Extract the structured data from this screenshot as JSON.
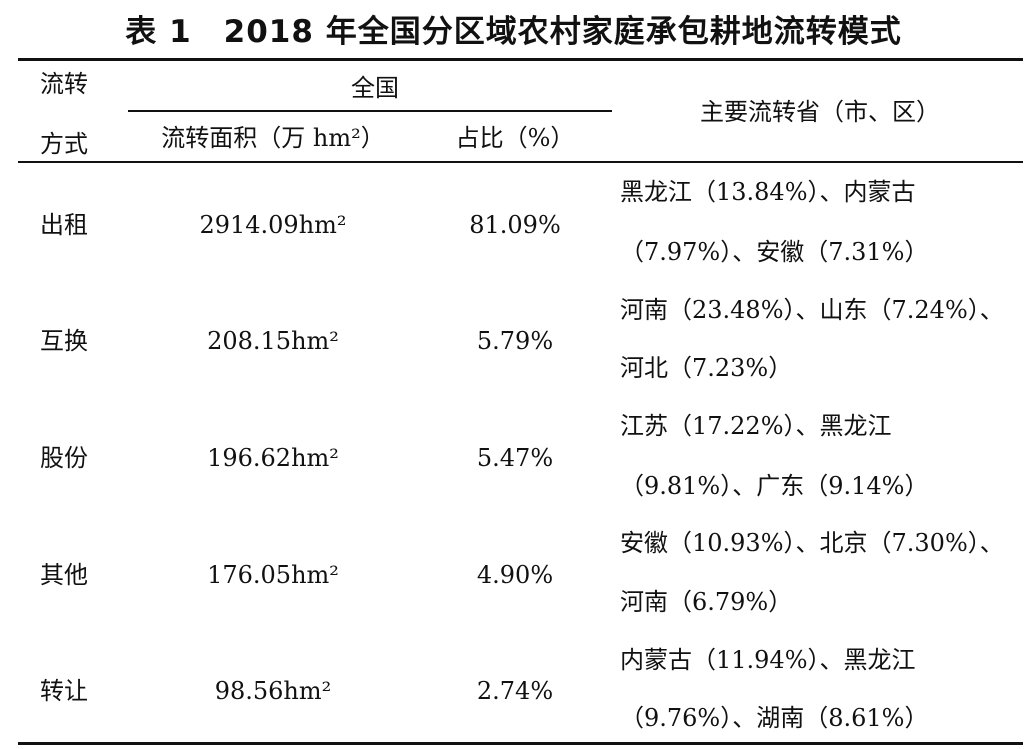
{
  "title": "表 1　2018 年全国分区域农村家庭承包耕地流转模式",
  "header": {
    "method_line1": "流转",
    "method_line2": "方式",
    "national": "全国",
    "area": "流转面积（万 hm²）",
    "share": "占比（%）",
    "provinces": "主要流转省（市、区）"
  },
  "rows": [
    {
      "method": "出租",
      "area": "2914.09hm²",
      "share": "81.09%",
      "provinces_line1": "黑龙江（13.84%）、内蒙古",
      "provinces_line2": "（7.97%）、安徽（7.31%）"
    },
    {
      "method": "互换",
      "area": "208.15hm²",
      "share": "5.79%",
      "provinces_line1": "河南（23.48%）、山东（7.24%）、",
      "provinces_line2": "河北（7.23%）"
    },
    {
      "method": "股份",
      "area": "196.62hm²",
      "share": "5.47%",
      "provinces_line1": "江苏（17.22%）、黑龙江",
      "provinces_line2": "（9.81%）、广东（9.14%）"
    },
    {
      "method": "其他",
      "area": "176.05hm²",
      "share": "4.90%",
      "provinces_line1": "安徽（10.93%）、北京（7.30%）、",
      "provinces_line2": "河南（6.79%）"
    },
    {
      "method": "转让",
      "area": "98.56hm²",
      "share": "2.74%",
      "provinces_line1": "内蒙古（11.94%）、黑龙江",
      "provinces_line2": "（9.76%）、湖南（8.61%）"
    }
  ]
}
